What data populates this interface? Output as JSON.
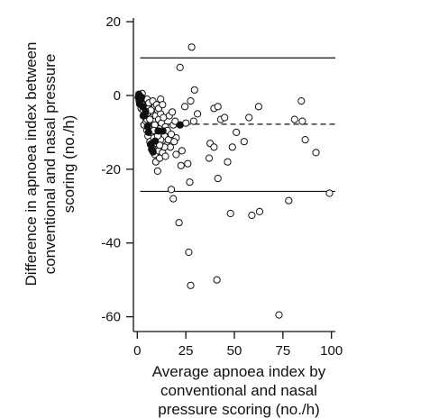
{
  "chart_data": {
    "type": "scatter",
    "title": "",
    "xlabel": [
      "Average apnoea index by",
      "conventional and nasal",
      "pressure scoring (no./h)"
    ],
    "ylabel": [
      "Difference in apnoea index between",
      "conventional and nasal pressure",
      "scoring (no./h)"
    ],
    "xlim": [
      -2,
      102
    ],
    "ylim": [
      -64,
      21
    ],
    "xticks": [
      0,
      25,
      50,
      75,
      100
    ],
    "yticks": [
      20,
      0,
      -20,
      -40,
      -60
    ],
    "grid": false,
    "reference_lines": [
      {
        "style": "solid",
        "y": 10.2
      },
      {
        "style": "dashed",
        "y": -7.8
      },
      {
        "style": "solid",
        "y": -26
      }
    ],
    "series": [
      {
        "marker": "open-circle",
        "points": [
          [
            28,
            13.1
          ],
          [
            22,
            7.6
          ],
          [
            29.5,
            1.5
          ],
          [
            27.5,
            -1.5
          ],
          [
            24.5,
            -3
          ],
          [
            31,
            -5
          ],
          [
            25,
            -7.5
          ],
          [
            29,
            -7
          ],
          [
            20,
            -11.5
          ],
          [
            23,
            -15
          ],
          [
            26,
            -18.5
          ],
          [
            22.5,
            -19
          ],
          [
            27,
            -23.5
          ],
          [
            17.5,
            -25.5
          ],
          [
            18.5,
            -28
          ],
          [
            21.5,
            -34.5
          ],
          [
            26.5,
            -42.5
          ],
          [
            27.5,
            -51.5
          ],
          [
            39.5,
            -3.5
          ],
          [
            41.5,
            -3
          ],
          [
            43,
            -6.5
          ],
          [
            45,
            -6
          ],
          [
            37.5,
            -13
          ],
          [
            39.5,
            -14
          ],
          [
            37,
            -17
          ],
          [
            41.5,
            -22.5
          ],
          [
            46.5,
            -18
          ],
          [
            49,
            -14
          ],
          [
            51,
            -10
          ],
          [
            55,
            -12.5
          ],
          [
            57.5,
            -6
          ],
          [
            62.5,
            -3
          ],
          [
            48,
            -32
          ],
          [
            59,
            -32.5
          ],
          [
            63,
            -31.5
          ],
          [
            41,
            -50
          ],
          [
            73,
            -59.5
          ],
          [
            78,
            -28.5
          ],
          [
            81,
            -6.5
          ],
          [
            84.5,
            -1.5
          ],
          [
            85,
            -7
          ],
          [
            86.5,
            -12
          ],
          [
            92,
            -15.5
          ],
          [
            99,
            -26.5
          ],
          [
            1,
            0
          ],
          [
            1.5,
            -0.5
          ],
          [
            2,
            -1
          ],
          [
            2.5,
            0.5
          ],
          [
            3,
            -2
          ],
          [
            3.5,
            -1.5
          ],
          [
            4,
            -3
          ],
          [
            4.5,
            -2.5
          ],
          [
            5,
            -1
          ],
          [
            5.5,
            -4
          ],
          [
            6,
            -3.5
          ],
          [
            6.5,
            -5
          ],
          [
            7,
            -2
          ],
          [
            7.5,
            -6
          ],
          [
            8,
            -4.5
          ],
          [
            8.5,
            -7
          ],
          [
            9,
            -3
          ],
          [
            9.5,
            -5.5
          ],
          [
            10,
            -8
          ],
          [
            10.5,
            -4
          ],
          [
            11,
            -6.5
          ],
          [
            11.5,
            -9
          ],
          [
            12,
            -5
          ],
          [
            12.5,
            -7.5
          ],
          [
            13,
            -10
          ],
          [
            13.5,
            -6
          ],
          [
            14,
            -11
          ],
          [
            14.5,
            -8.5
          ],
          [
            15,
            -13.5
          ],
          [
            15.5,
            -9.5
          ],
          [
            16,
            -12
          ],
          [
            16.5,
            -5.5
          ],
          [
            17,
            -14
          ],
          [
            17.5,
            -10.5
          ],
          [
            18,
            -4.5
          ],
          [
            18.5,
            -8
          ],
          [
            19,
            -12.5
          ],
          [
            19.5,
            -7
          ],
          [
            20,
            -16
          ],
          [
            2,
            -3.5
          ],
          [
            3,
            -5.5
          ],
          [
            3.5,
            -8
          ],
          [
            4.5,
            -7
          ],
          [
            5,
            -9.5
          ],
          [
            5.5,
            -11
          ],
          [
            6,
            -8.5
          ],
          [
            6.5,
            -12.5
          ],
          [
            7,
            -10
          ],
          [
            7.5,
            -13
          ],
          [
            8,
            -14.5
          ],
          [
            8.5,
            -11.5
          ],
          [
            9,
            -16
          ],
          [
            9.5,
            -18
          ],
          [
            10,
            -13
          ],
          [
            10.5,
            -20.5
          ],
          [
            11,
            -15
          ],
          [
            11.5,
            -17
          ],
          [
            12,
            -12
          ],
          [
            13,
            -15.5
          ],
          [
            14,
            -14
          ],
          [
            5,
            -6.5
          ],
          [
            6,
            -2
          ],
          [
            7,
            -4
          ],
          [
            8,
            -1.5
          ],
          [
            9,
            -8
          ],
          [
            10,
            -2.5
          ],
          [
            11,
            -3.5
          ],
          [
            12,
            -1
          ],
          [
            13,
            -2.5
          ],
          [
            4,
            -5
          ],
          [
            3,
            -4
          ],
          [
            2.5,
            -2.5
          ],
          [
            6.5,
            -6.5
          ],
          [
            8.5,
            -9.5
          ],
          [
            10.5,
            -11
          ],
          [
            11.5,
            -13.5
          ],
          [
            14.5,
            -16.5
          ]
        ]
      },
      {
        "marker": "filled-circle",
        "points": [
          [
            0.5,
            -0.5
          ],
          [
            1,
            -1.5
          ],
          [
            1.2,
            -2.3
          ],
          [
            0.8,
            0.3
          ],
          [
            1.8,
            -1.1
          ],
          [
            2.2,
            -0.5
          ],
          [
            2.8,
            -3
          ],
          [
            3.5,
            -5.5
          ],
          [
            4.2,
            -4.3
          ],
          [
            5.3,
            -8.4
          ],
          [
            5.8,
            -10
          ],
          [
            6.8,
            -13.3
          ],
          [
            7.4,
            -14.6
          ],
          [
            8.1,
            -15.3
          ],
          [
            9.2,
            -12.4
          ],
          [
            10.7,
            -9.6
          ],
          [
            13.2,
            -9.6
          ],
          [
            22,
            -8
          ]
        ]
      }
    ]
  }
}
